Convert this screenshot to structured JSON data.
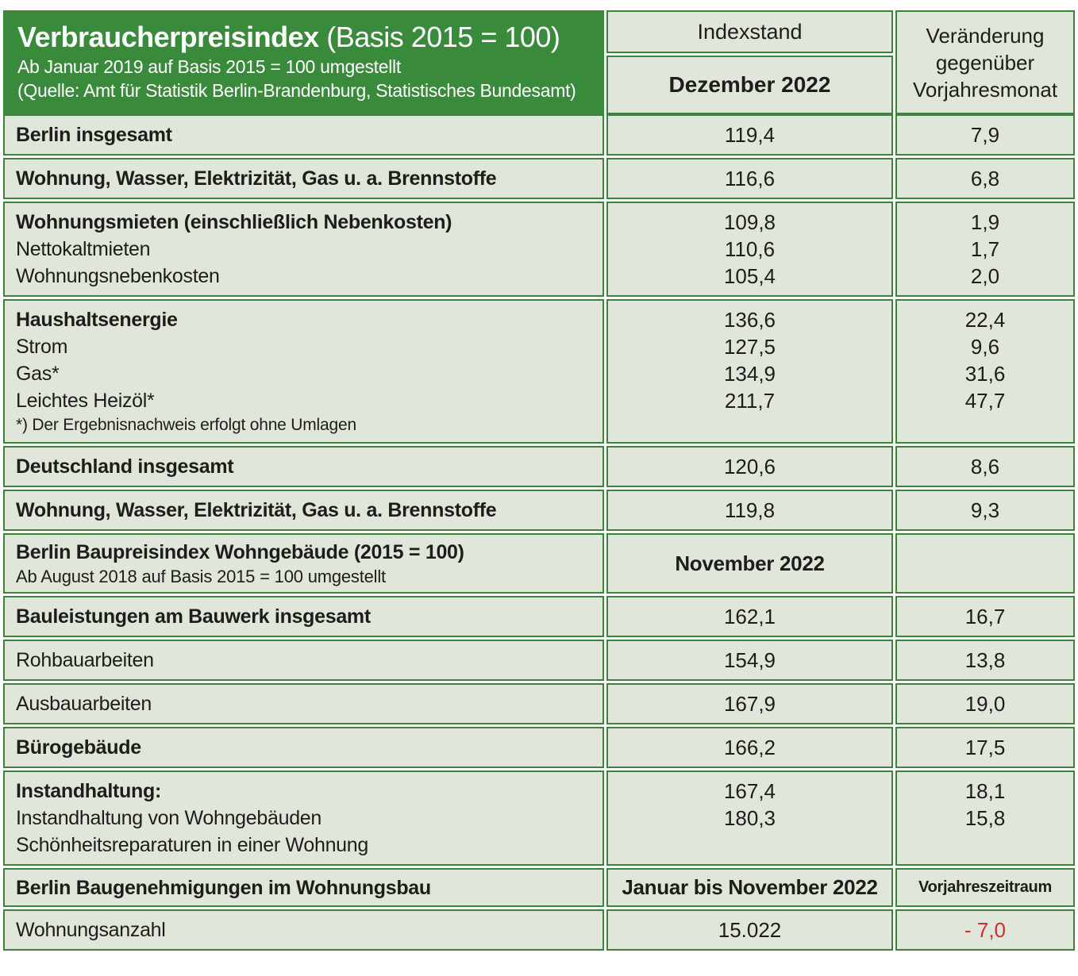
{
  "colors": {
    "header_green": "#3a8a3c",
    "cell_background": "#e1e6da",
    "border_green": "#3f823f",
    "text": "#1d1d1b",
    "negative_red": "#d42c2c",
    "header_text": "#ffffff"
  },
  "header": {
    "title": "Verbraucherpreisindex",
    "basis": "(Basis 2015 = 100)",
    "subtitle1": "Ab Januar 2019 auf Basis 2015 = 100 umgestellt",
    "subtitle2": "(Quelle: Amt für Statistik Berlin-Brandenburg, Statistisches Bundesamt)",
    "indexstand_label": "Indexstand",
    "period_label": "Dezember 2022",
    "change_label": "Veränderung gegenüber Vorjahresmonat"
  },
  "rows": [
    {
      "id": "berlin-insgesamt",
      "lines": [
        {
          "label": "Berlin insgesamt",
          "bold": true,
          "value": "119,4",
          "change": "7,9"
        }
      ]
    },
    {
      "id": "wohnung-wasser-berlin",
      "lines": [
        {
          "label": "Wohnung, Wasser, Elektrizität, Gas u. a. Brennstoffe",
          "bold": true,
          "value": "116,6",
          "change": "6,8"
        }
      ]
    },
    {
      "id": "wohnungsmieten",
      "lines": [
        {
          "label": "Wohnungsmieten (einschließlich Nebenkosten)",
          "bold": true,
          "value": "109,8",
          "change": "1,9"
        },
        {
          "label": "Nettokaltmieten",
          "bold": false,
          "value": "110,6",
          "change": "1,7"
        },
        {
          "label": "Wohnungsnebenkosten",
          "bold": false,
          "value": "105,4",
          "change": "2,0"
        }
      ]
    },
    {
      "id": "haushaltsenergie",
      "lines": [
        {
          "label": "Haushaltsenergie",
          "bold": true,
          "value": "136,6",
          "change": "22,4"
        },
        {
          "label": "Strom",
          "bold": false,
          "value": "127,5",
          "change": "9,6"
        },
        {
          "label": "Gas*",
          "bold": false,
          "value": "134,9",
          "change": "31,6"
        },
        {
          "label": "Leichtes Heizöl*",
          "bold": false,
          "value": "211,7",
          "change": "47,7"
        }
      ],
      "footnote": "*) Der Ergebnisnachweis erfolgt ohne Umlagen"
    },
    {
      "id": "deutschland-insgesamt",
      "lines": [
        {
          "label": "Deutschland insgesamt",
          "bold": true,
          "value": "120,6",
          "change": "8,6"
        }
      ]
    },
    {
      "id": "wohnung-wasser-deutschland",
      "lines": [
        {
          "label": "Wohnung, Wasser, Elektrizität, Gas u. a. Brennstoffe",
          "bold": true,
          "value": "119,8",
          "change": "9,3"
        }
      ]
    },
    {
      "id": "baupreisindex-section",
      "section": true,
      "label": "Berlin Baupreisindex Wohngebäude (2015 = 100)",
      "sublabel": "Ab August 2018 auf Basis 2015 = 100 umgestellt",
      "value_header": "November 2022",
      "change_header": ""
    },
    {
      "id": "bauleistungen",
      "lines": [
        {
          "label": "Bauleistungen am Bauwerk insgesamt",
          "bold": true,
          "value": "162,1",
          "change": "16,7"
        }
      ]
    },
    {
      "id": "rohbauarbeiten",
      "lines": [
        {
          "label": "Rohbauarbeiten",
          "bold": false,
          "value": "154,9",
          "change": "13,8"
        }
      ]
    },
    {
      "id": "ausbauarbeiten",
      "lines": [
        {
          "label": "Ausbauarbeiten",
          "bold": false,
          "value": "167,9",
          "change": "19,0"
        }
      ]
    },
    {
      "id": "buerogebaeude",
      "lines": [
        {
          "label": "Bürogebäude",
          "bold": true,
          "value": "166,2",
          "change": "17,5"
        }
      ]
    },
    {
      "id": "instandhaltung",
      "lines": [
        {
          "label": "Instandhaltung:",
          "bold": true,
          "value": "",
          "change": ""
        },
        {
          "label": "Instandhaltung von Wohngebäuden",
          "bold": false,
          "value": "167,4",
          "change": "18,1"
        },
        {
          "label": "Schönheitsreparaturen in einer Wohnung",
          "bold": false,
          "value": "180,3",
          "change": "15,8"
        }
      ]
    },
    {
      "id": "baugenehmigungen-section",
      "section": true,
      "label": "Berlin Baugenehmigungen im Wohnungsbau",
      "sublabel": "",
      "value_header": "Januar bis November 2022",
      "change_header": "Vorjahreszeitraum"
    },
    {
      "id": "wohnungsanzahl",
      "lines": [
        {
          "label": "Wohnungsanzahl",
          "bold": false,
          "value": "15.022",
          "change": "- 7,0",
          "change_negative": true
        }
      ]
    }
  ],
  "chart_data": {
    "type": "table",
    "title": "Verbraucherpreisindex (Basis 2015 = 100)",
    "notes": [
      "Ab Januar 2019 auf Basis 2015 = 100 umgestellt",
      "(Quelle: Amt für Statistik Berlin-Brandenburg, Statistisches Bundesamt)",
      "*) Der Ergebnisnachweis erfolgt ohne Umlagen",
      "Berlin Baupreisindex Wohngebäude (2015 = 100): Ab August 2018 auf Basis 2015 = 100 umgestellt"
    ],
    "columns": [
      "Kategorie",
      "Indexstand",
      "Veränderung gegenüber Vorjahresmonat"
    ],
    "sections": [
      {
        "period": "Dezember 2022",
        "rows": [
          [
            "Berlin insgesamt",
            119.4,
            7.9
          ],
          [
            "Wohnung, Wasser, Elektrizität, Gas u. a. Brennstoffe",
            116.6,
            6.8
          ],
          [
            "Wohnungsmieten (einschließlich Nebenkosten)",
            109.8,
            1.9
          ],
          [
            "Nettokaltmieten",
            110.6,
            1.7
          ],
          [
            "Wohnungsnebenkosten",
            105.4,
            2.0
          ],
          [
            "Haushaltsenergie",
            136.6,
            22.4
          ],
          [
            "Strom",
            127.5,
            9.6
          ],
          [
            "Gas*",
            134.9,
            31.6
          ],
          [
            "Leichtes Heizöl*",
            211.7,
            47.7
          ],
          [
            "Deutschland insgesamt",
            120.6,
            8.6
          ],
          [
            "Wohnung, Wasser, Elektrizität, Gas u. a. Brennstoffe",
            119.8,
            9.3
          ]
        ]
      },
      {
        "period": "November 2022",
        "title": "Berlin Baupreisindex Wohngebäude (2015 = 100)",
        "rows": [
          [
            "Bauleistungen am Bauwerk insgesamt",
            162.1,
            16.7
          ],
          [
            "Rohbauarbeiten",
            154.9,
            13.8
          ],
          [
            "Ausbauarbeiten",
            167.9,
            19.0
          ],
          [
            "Bürogebäude",
            166.2,
            17.5
          ],
          [
            "Instandhaltung von Wohngebäuden",
            167.4,
            18.1
          ],
          [
            "Schönheitsreparaturen in einer Wohnung",
            180.3,
            15.8
          ]
        ]
      },
      {
        "period": "Januar bis November 2022",
        "title": "Berlin Baugenehmigungen im Wohnungsbau",
        "change_column": "Vorjahreszeitraum",
        "rows": [
          [
            "Wohnungsanzahl",
            15022,
            -7.0
          ]
        ]
      }
    ]
  }
}
